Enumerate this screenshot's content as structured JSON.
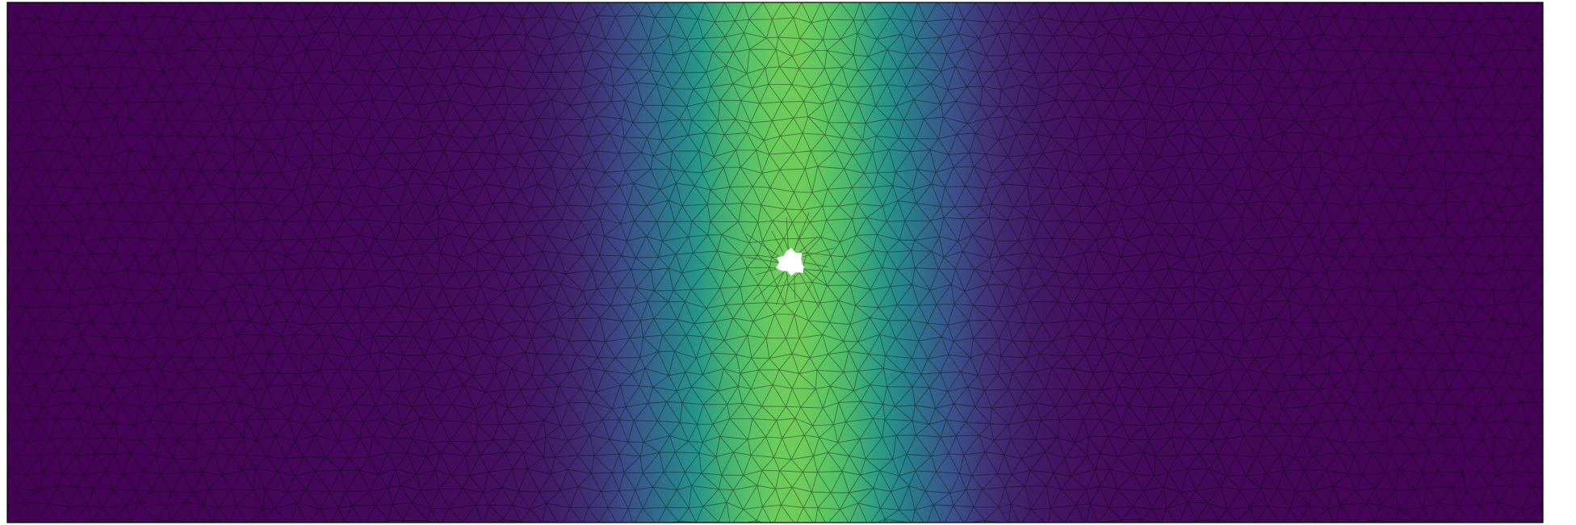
{
  "figure": {
    "type": "finite-element mesh field plot",
    "colormap": "viridis",
    "colormap_stops": [
      "#440154",
      "#3b528b",
      "#21918c",
      "#5ec962",
      "#fde725"
    ],
    "field_shape": "gaussian band with a central hole",
    "mesh_line_color": "#000000",
    "frame_color": "#000000",
    "hole_color": "#ffffff",
    "field_peak_level": 0.73,
    "field_edge_level": 0.0
  }
}
